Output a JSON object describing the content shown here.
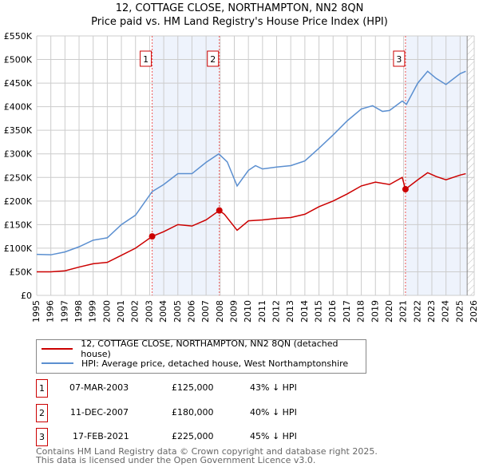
{
  "chart_data": {
    "type": "line",
    "title": "12, COTTAGE CLOSE, NORTHAMPTON, NN2 8QN",
    "subtitle": "Price paid vs. HM Land Registry's House Price Index (HPI)",
    "xlim": [
      1995,
      2026
    ],
    "ylim": [
      0,
      550000
    ],
    "x_ticks": [
      "1995",
      "1996",
      "1997",
      "1998",
      "1999",
      "2000",
      "2001",
      "2002",
      "2003",
      "2004",
      "2005",
      "2006",
      "2007",
      "2008",
      "2009",
      "2010",
      "2011",
      "2012",
      "2013",
      "2014",
      "2015",
      "2016",
      "2017",
      "2018",
      "2019",
      "2020",
      "2021",
      "2022",
      "2023",
      "2024",
      "2025",
      "2026"
    ],
    "y_ticks": [
      {
        "v": 0,
        "label": "£0"
      },
      {
        "v": 50000,
        "label": "£50K"
      },
      {
        "v": 100000,
        "label": "£100K"
      },
      {
        "v": 150000,
        "label": "£150K"
      },
      {
        "v": 200000,
        "label": "£200K"
      },
      {
        "v": 250000,
        "label": "£250K"
      },
      {
        "v": 300000,
        "label": "£300K"
      },
      {
        "v": 350000,
        "label": "£350K"
      },
      {
        "v": 400000,
        "label": "£400K"
      },
      {
        "v": 450000,
        "label": "£450K"
      },
      {
        "v": 500000,
        "label": "£500K"
      },
      {
        "v": 550000,
        "label": "£550K"
      }
    ],
    "grid": true,
    "series": [
      {
        "name": "12, COTTAGE CLOSE, NORTHAMPTON, NN2 8QN (detached house)",
        "color": "#cc0000",
        "x": [
          1995,
          1996,
          1997,
          1998,
          1999,
          2000,
          2001,
          2002,
          2003.18,
          2004,
          2005,
          2006,
          2007,
          2007.94,
          2008.3,
          2009.2,
          2010,
          2011,
          2012,
          2013,
          2014,
          2015,
          2016,
          2017,
          2018,
          2019,
          2020,
          2020.9,
          2021.13,
          2022,
          2022.7,
          2023.3,
          2024,
          2025,
          2025.4
        ],
        "y": [
          50000,
          50000,
          52000,
          60000,
          67000,
          70000,
          85000,
          100000,
          125000,
          135000,
          150000,
          147000,
          160000,
          180000,
          172000,
          138000,
          158000,
          160000,
          163000,
          165000,
          172000,
          188000,
          200000,
          215000,
          232000,
          240000,
          235000,
          250000,
          225000,
          245000,
          260000,
          252000,
          245000,
          255000,
          258000
        ]
      },
      {
        "name": "HPI: Average price, detached house, West Northamptonshire",
        "color": "#5b8fd0",
        "x": [
          1995,
          1996,
          1997,
          1998,
          1999,
          2000,
          2001,
          2002,
          2003.18,
          2004,
          2005,
          2006,
          2007,
          2007.9,
          2008.5,
          2009.2,
          2010,
          2010.5,
          2011,
          2012,
          2013,
          2014,
          2015,
          2016,
          2017,
          2018,
          2018.8,
          2019.5,
          2020,
          2020.9,
          2021.2,
          2022,
          2022.7,
          2023.3,
          2024,
          2025,
          2025.4
        ],
        "y": [
          87000,
          86000,
          92000,
          103000,
          117000,
          122000,
          150000,
          170000,
          220000,
          235000,
          258000,
          258000,
          282000,
          300000,
          283000,
          232000,
          265000,
          275000,
          268000,
          272000,
          275000,
          285000,
          312000,
          340000,
          370000,
          395000,
          402000,
          390000,
          392000,
          412000,
          405000,
          450000,
          475000,
          460000,
          447000,
          470000,
          475000
        ]
      }
    ],
    "sales": [
      {
        "n": "1",
        "x": 2003.18,
        "y": 125000,
        "date": "07-MAR-2003",
        "price": "£125,000",
        "hpi": "43% ↓ HPI"
      },
      {
        "n": "2",
        "x": 2007.94,
        "y": 180000,
        "date": "11-DEC-2007",
        "price": "£180,000",
        "hpi": "40% ↓ HPI"
      },
      {
        "n": "3",
        "x": 2021.13,
        "y": 225000,
        "date": "17-FEB-2021",
        "price": "£225,000",
        "hpi": "45% ↓ HPI"
      }
    ],
    "shaded": [
      [
        2003.18,
        2007.94
      ],
      [
        2021.13,
        2025.5
      ]
    ],
    "hatched_from": 2025.5,
    "legend_placement": "bottom"
  },
  "footer": [
    "Contains HM Land Registry data © Crown copyright and database right 2025.",
    "This data is licensed under the Open Government Licence v3.0."
  ]
}
